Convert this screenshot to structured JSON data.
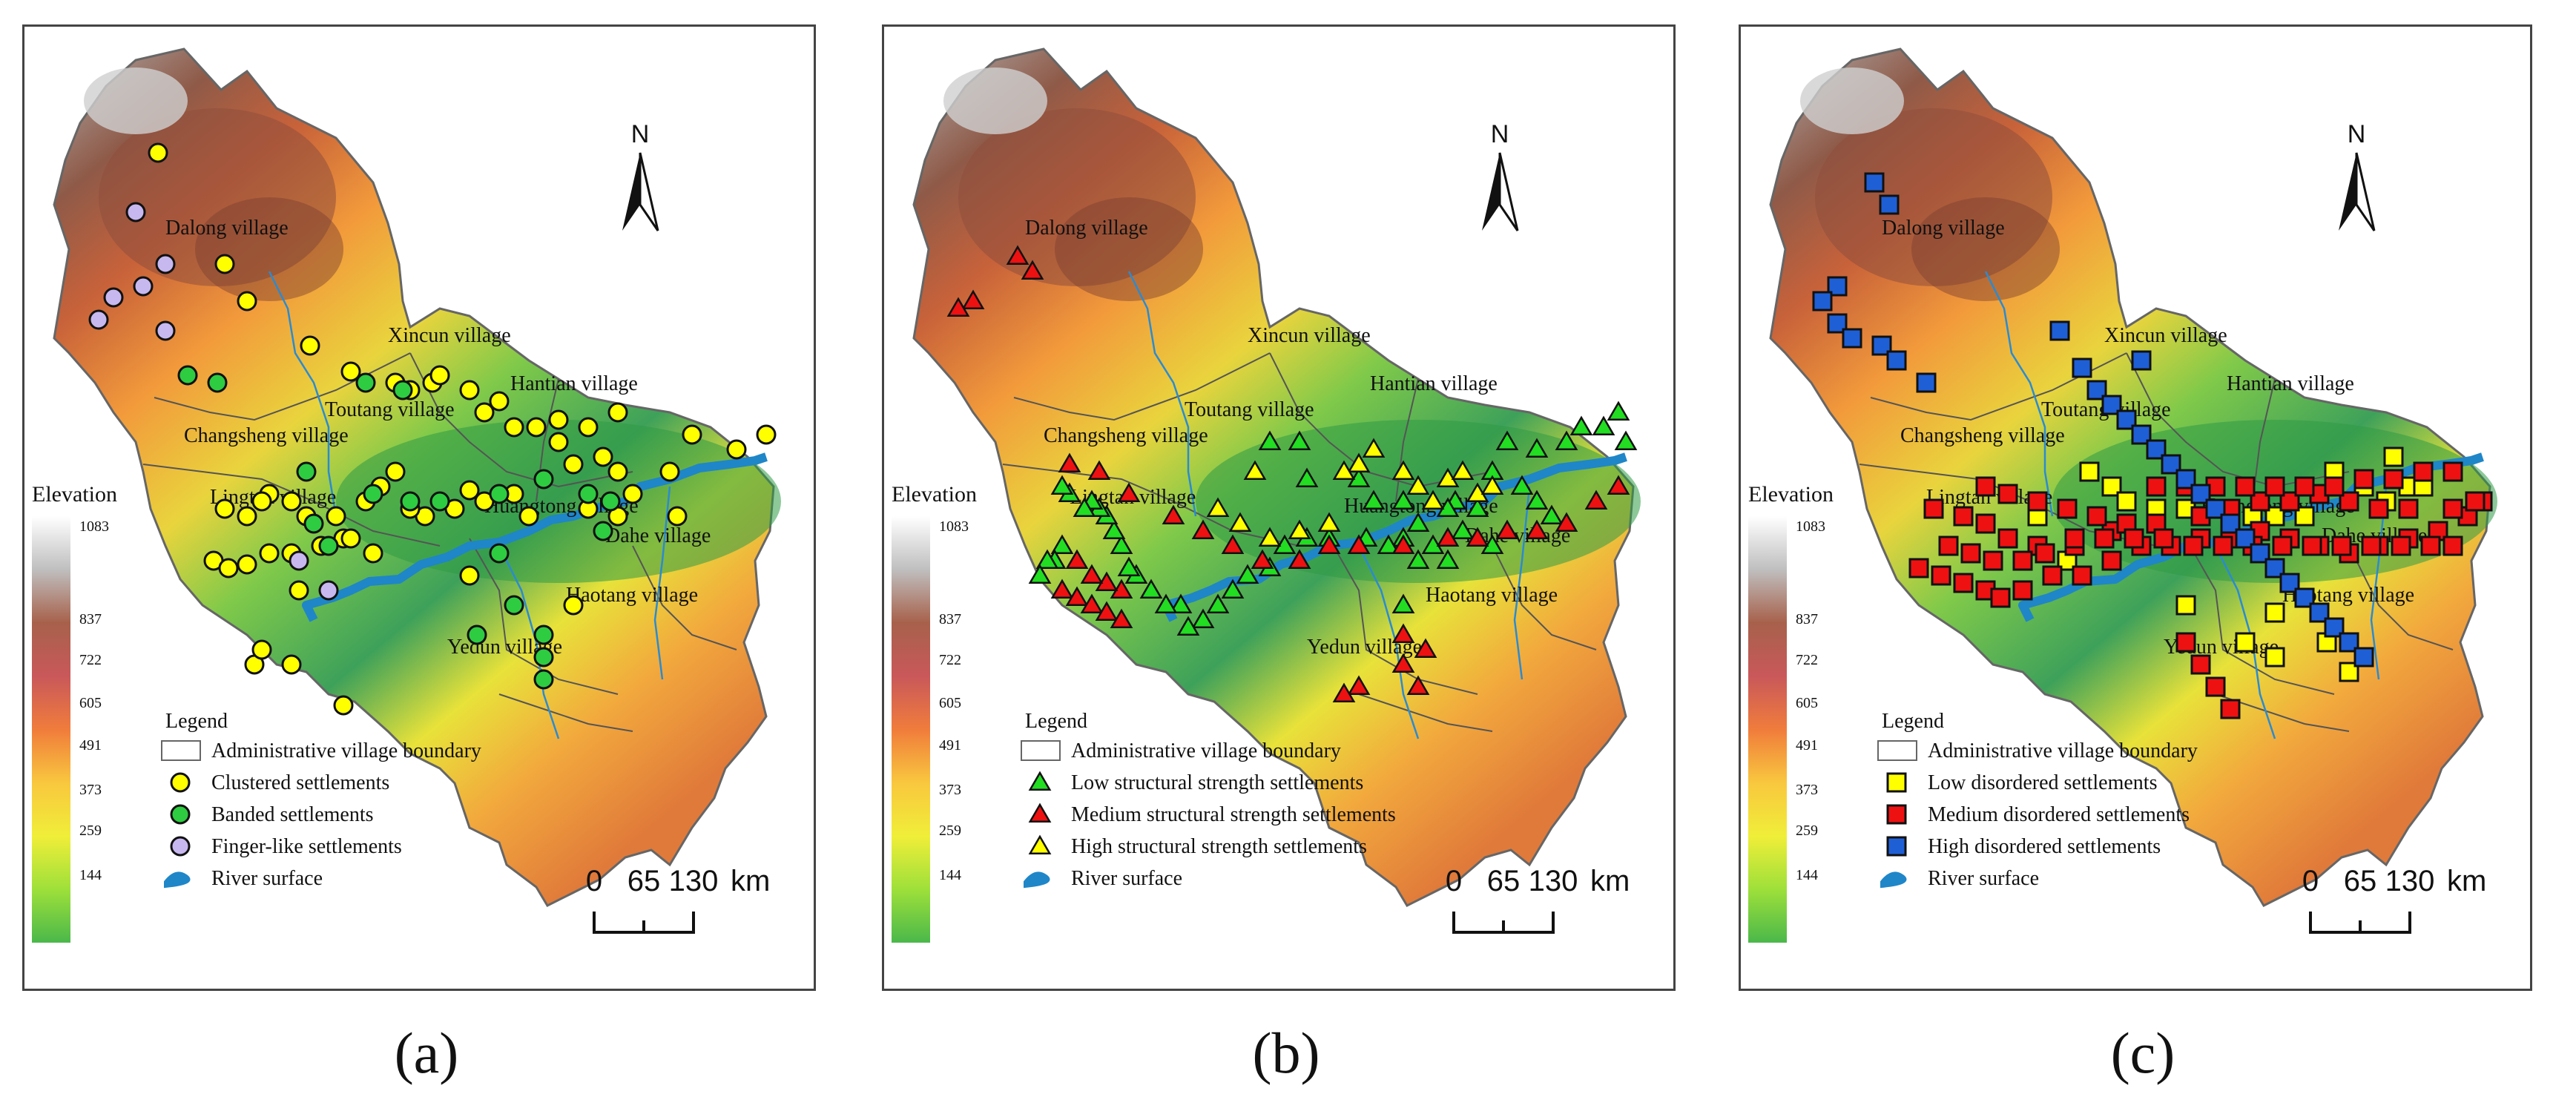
{
  "elevation": {
    "title": "Elevation",
    "ticks": [
      "1083",
      "837",
      "722",
      "605",
      "491",
      "373",
      "259",
      "144"
    ],
    "color_stops": [
      "#ffffff",
      "#bfbfbf",
      "#a7614b",
      "#c9585a",
      "#f07c3c",
      "#f9c73e",
      "#f0ee39",
      "#9ee03a",
      "#4ab84a"
    ]
  },
  "villages": [
    "Dalong village",
    "Xincun village",
    "Hantian village",
    "Toutang village",
    "Changsheng village",
    "Lingtan village",
    "Huangtong village",
    "Dahe village",
    "Haotang village",
    "Yedun village"
  ],
  "scalebar": {
    "ticks": [
      "0",
      "65",
      "130"
    ],
    "unit": "km"
  },
  "north_label": "N",
  "panels": [
    {
      "caption": "(a)",
      "legend": {
        "title": "Legend",
        "boundary": "Administrative village boundary",
        "items": [
          {
            "label": "Clustered settlements",
            "shape": "circle",
            "color": "#ffff00"
          },
          {
            "label": "Banded settlements",
            "shape": "circle",
            "color": "#2ecc40"
          },
          {
            "label": "Finger-like settlements",
            "shape": "circle",
            "color": "#c8b8f0"
          }
        ],
        "river": "River surface"
      }
    },
    {
      "caption": "(b)",
      "legend": {
        "title": "Legend",
        "boundary": "Administrative village boundary",
        "items": [
          {
            "label": "Low structural strength settlements",
            "shape": "triangle",
            "color": "#22dd22"
          },
          {
            "label": "Medium structural strength settlements",
            "shape": "triangle",
            "color": "#ee1111"
          },
          {
            "label": "High structural strength settlements",
            "shape": "triangle",
            "color": "#ffff00"
          }
        ],
        "river": "River surface"
      }
    },
    {
      "caption": "(c)",
      "legend": {
        "title": "Legend",
        "boundary": "Administrative village boundary",
        "items": [
          {
            "label": "Low disordered settlements",
            "shape": "square",
            "color": "#ffff00"
          },
          {
            "label": "Medium disordered settlements",
            "shape": "square",
            "color": "#ee1111"
          },
          {
            "label": "High disordered settlements",
            "shape": "square",
            "color": "#1f5fd6"
          }
        ],
        "river": "River surface"
      }
    }
  ]
}
